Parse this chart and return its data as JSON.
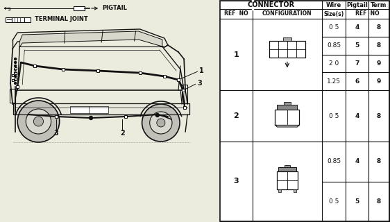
{
  "bg_color": "#ebebde",
  "table_bg": "#ffffff",
  "border_color": "#111111",
  "pigtail_label": "PIGTAIL",
  "terminal_label": "TERMINAL JOINT",
  "header_connector": "CONNECTOR",
  "header_wire": "Wire",
  "header_pigtail": "Pigtail",
  "header_term": "Term",
  "header_ref_no": "REF  NO",
  "header_configuration": "CONFIGURATION",
  "header_size": "Size(s)",
  "header_pig_ref": "REF  NO",
  "rows": [
    {
      "ref": "1",
      "wire": [
        "0 5",
        "0.85",
        "2 0",
        "1.25"
      ],
      "pig": [
        "4",
        "5",
        "7",
        "6"
      ],
      "term": [
        "8",
        "8",
        "9",
        "9"
      ]
    },
    {
      "ref": "2",
      "wire": [
        "0 5"
      ],
      "pig": [
        "4"
      ],
      "term": [
        "8"
      ]
    },
    {
      "ref": "3",
      "wire": [
        "0.85",
        "0 5"
      ],
      "pig": [
        "4",
        "5"
      ],
      "term": [
        "8",
        "8"
      ]
    }
  ]
}
